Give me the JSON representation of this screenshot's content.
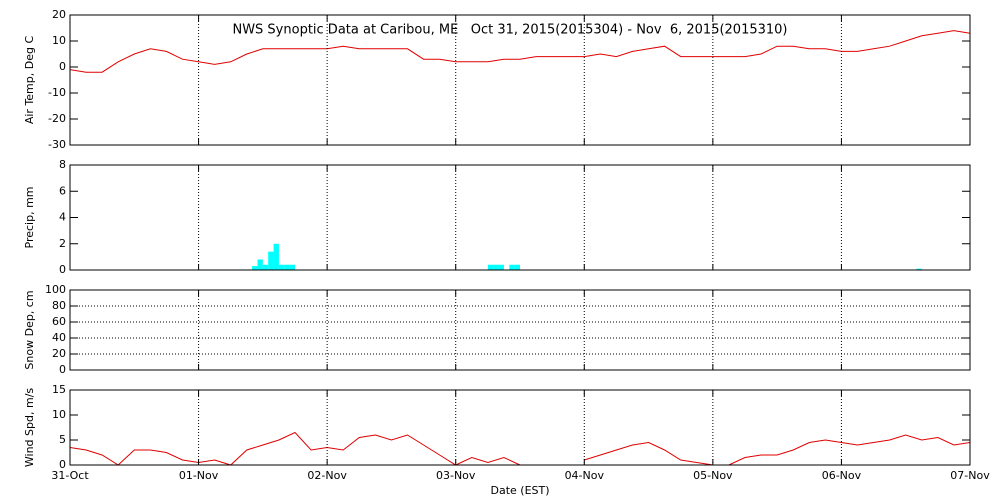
{
  "chart_data": [
    {
      "type": "line",
      "title": "NWS Synoptic Data at Caribou, ME   Oct 31, 2015(2015304) - Nov  6, 2015(2015310)",
      "ylabel": "Air Temp, Deg C",
      "xlim": [
        0,
        168
      ],
      "xticks": [
        0,
        24,
        48,
        72,
        96,
        120,
        144,
        168
      ],
      "ylim": [
        -30,
        20
      ],
      "yticks": [
        -30,
        -20,
        -10,
        0,
        10,
        20
      ],
      "grid": "x",
      "x": [
        0,
        3,
        6,
        9,
        12,
        15,
        18,
        21,
        24,
        27,
        30,
        33,
        36,
        39,
        42,
        45,
        48,
        51,
        54,
        57,
        60,
        63,
        66,
        69,
        72,
        75,
        78,
        81,
        84,
        87,
        90,
        93,
        96,
        99,
        102,
        105,
        108,
        111,
        114,
        117,
        120,
        123,
        126,
        129,
        132,
        135,
        138,
        141,
        144,
        147,
        150,
        153,
        156,
        159,
        162,
        165,
        168
      ],
      "series": [
        {
          "name": "Air Temp",
          "color": "#e00000",
          "values": [
            -1,
            -2,
            -2,
            2,
            5,
            7,
            6,
            3,
            2,
            1,
            2,
            5,
            7,
            7,
            7,
            7,
            7,
            8,
            7,
            7,
            7,
            7,
            3,
            3,
            2,
            2,
            2,
            3,
            3,
            4,
            4,
            4,
            4,
            5,
            4,
            6,
            7,
            8,
            4,
            4,
            4,
            4,
            4,
            5,
            8,
            8,
            7,
            7,
            6,
            6,
            7,
            8,
            10,
            12,
            13,
            14,
            13
          ]
        }
      ]
    },
    {
      "type": "bar",
      "ylabel": "Precip, mm",
      "xlim": [
        0,
        168
      ],
      "xticks": [
        0,
        24,
        48,
        72,
        96,
        120,
        144,
        168
      ],
      "ylim": [
        0,
        8
      ],
      "yticks": [
        0,
        2,
        4,
        6,
        8
      ],
      "grid": "x",
      "x": [
        34,
        35,
        36,
        37,
        38,
        39,
        40,
        41,
        78,
        79,
        80,
        82,
        83,
        158
      ],
      "series": [
        {
          "name": "Precip",
          "color": "#00ffff",
          "values": [
            0.3,
            0.8,
            0.4,
            1.4,
            2.0,
            0.4,
            0.4,
            0.4,
            0.4,
            0.4,
            0.4,
            0.4,
            0.4,
            0.1
          ]
        }
      ]
    },
    {
      "type": "line",
      "ylabel": "Snow Dep, cm",
      "xlim": [
        0,
        168
      ],
      "xticks": [
        0,
        24,
        48,
        72,
        96,
        120,
        144,
        168
      ],
      "ylim": [
        0,
        100
      ],
      "yticks": [
        0,
        20,
        40,
        60,
        80,
        100
      ],
      "grid": "both"
    },
    {
      "type": "line",
      "ylabel": "Wind Spd, m/s",
      "xlabel": "Date (EST)",
      "xlim": [
        0,
        168
      ],
      "xticks": [
        {
          "value": 0,
          "label": "31-Oct"
        },
        {
          "value": 24,
          "label": "01-Nov"
        },
        {
          "value": 48,
          "label": "02-Nov"
        },
        {
          "value": 72,
          "label": "03-Nov"
        },
        {
          "value": 96,
          "label": "04-Nov"
        },
        {
          "value": 120,
          "label": "05-Nov"
        },
        {
          "value": 144,
          "label": "06-Nov"
        },
        {
          "value": 168,
          "label": "07-Nov"
        }
      ],
      "ylim": [
        0,
        15
      ],
      "yticks": [
        0,
        5,
        10,
        15
      ],
      "grid": "x",
      "x": [
        0,
        3,
        6,
        9,
        12,
        15,
        18,
        21,
        24,
        27,
        30,
        33,
        36,
        39,
        42,
        45,
        48,
        51,
        54,
        57,
        60,
        63,
        66,
        69,
        72,
        75,
        78,
        81,
        84,
        87,
        90,
        93,
        96,
        99,
        102,
        105,
        108,
        111,
        114,
        117,
        120,
        123,
        126,
        129,
        132,
        135,
        138,
        141,
        144,
        147,
        150,
        153,
        156,
        159,
        162,
        165,
        168
      ],
      "series": [
        {
          "name": "Wind Spd",
          "color": "#e00000",
          "values": [
            3.5,
            3,
            2,
            0,
            3,
            3,
            2.5,
            1,
            0.5,
            1,
            0,
            3,
            4,
            5,
            6.5,
            3,
            3.5,
            3,
            5.5,
            6,
            5,
            6,
            4,
            2,
            0,
            1.5,
            0.5,
            1.5,
            0,
            null,
            null,
            null,
            1,
            2,
            3,
            4,
            4.5,
            3,
            1,
            0.5,
            0,
            0,
            1.5,
            2,
            2,
            3,
            4.5,
            5,
            4.5,
            4,
            4.5,
            5,
            6,
            5,
            5.5,
            4,
            4.5
          ]
        }
      ]
    }
  ]
}
